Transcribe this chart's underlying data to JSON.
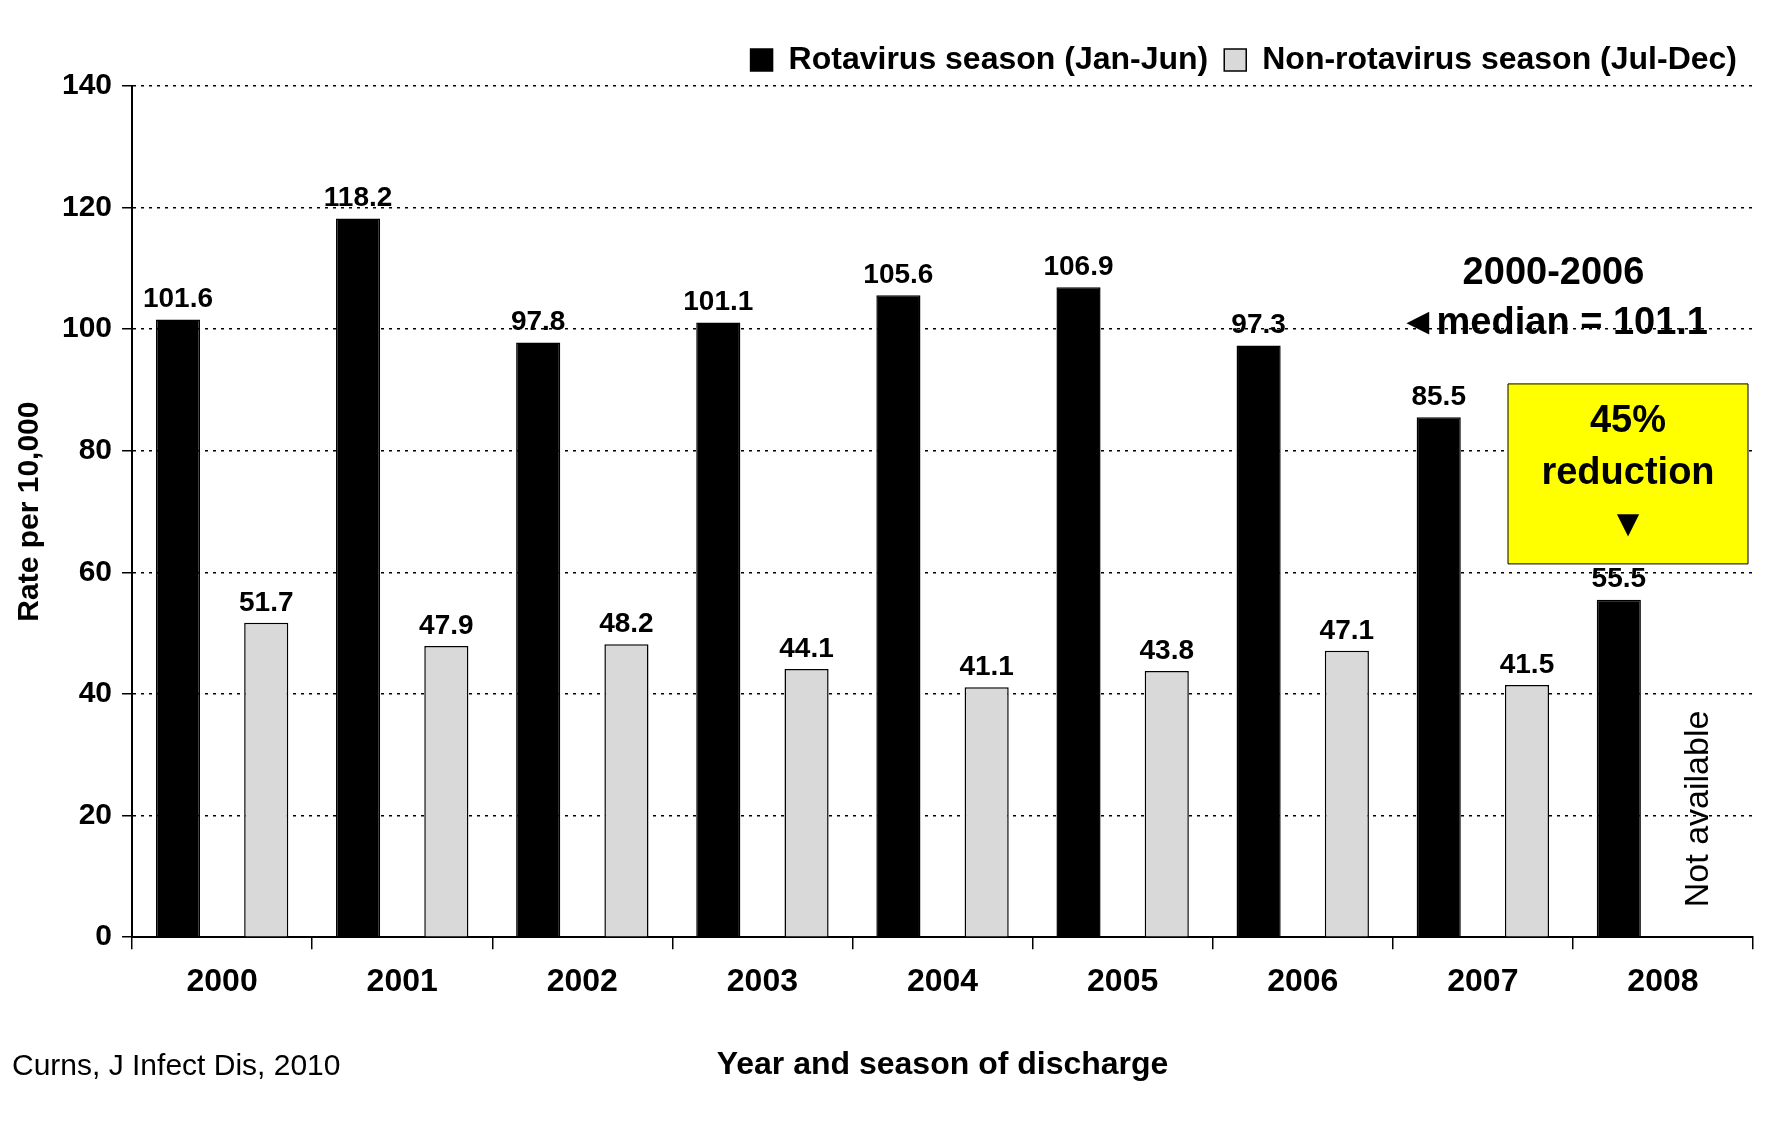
{
  "chart_data": {
    "type": "bar",
    "xlabel": "Year and season of discharge",
    "ylabel": "Rate per 10,000",
    "categories": [
      "2000",
      "2001",
      "2002",
      "2003",
      "2004",
      "2005",
      "2006",
      "2007",
      "2008"
    ],
    "series": [
      {
        "name": "Rotavirus season (Jan-Jun)",
        "color": "#000000",
        "values": [
          101.6,
          118.2,
          97.8,
          101.1,
          105.6,
          106.9,
          97.3,
          85.5,
          55.5
        ]
      },
      {
        "name": "Non-rotavirus season (Jul-Dec)",
        "color": "#d9d9d9",
        "values": [
          51.7,
          47.9,
          48.2,
          44.1,
          41.1,
          43.8,
          47.1,
          41.5,
          null
        ]
      }
    ],
    "ylim": [
      0,
      140
    ],
    "yticks": [
      0,
      20,
      40,
      60,
      80,
      100,
      120,
      140
    ],
    "grid": "y",
    "legend": "top right",
    "data_labels": true,
    "annotations": [
      "2000-2006\n◄median = 101.1",
      "Not available",
      "45%\nreduction\n▼",
      "Curns, J Infect Dis, 2010"
    ]
  }
}
